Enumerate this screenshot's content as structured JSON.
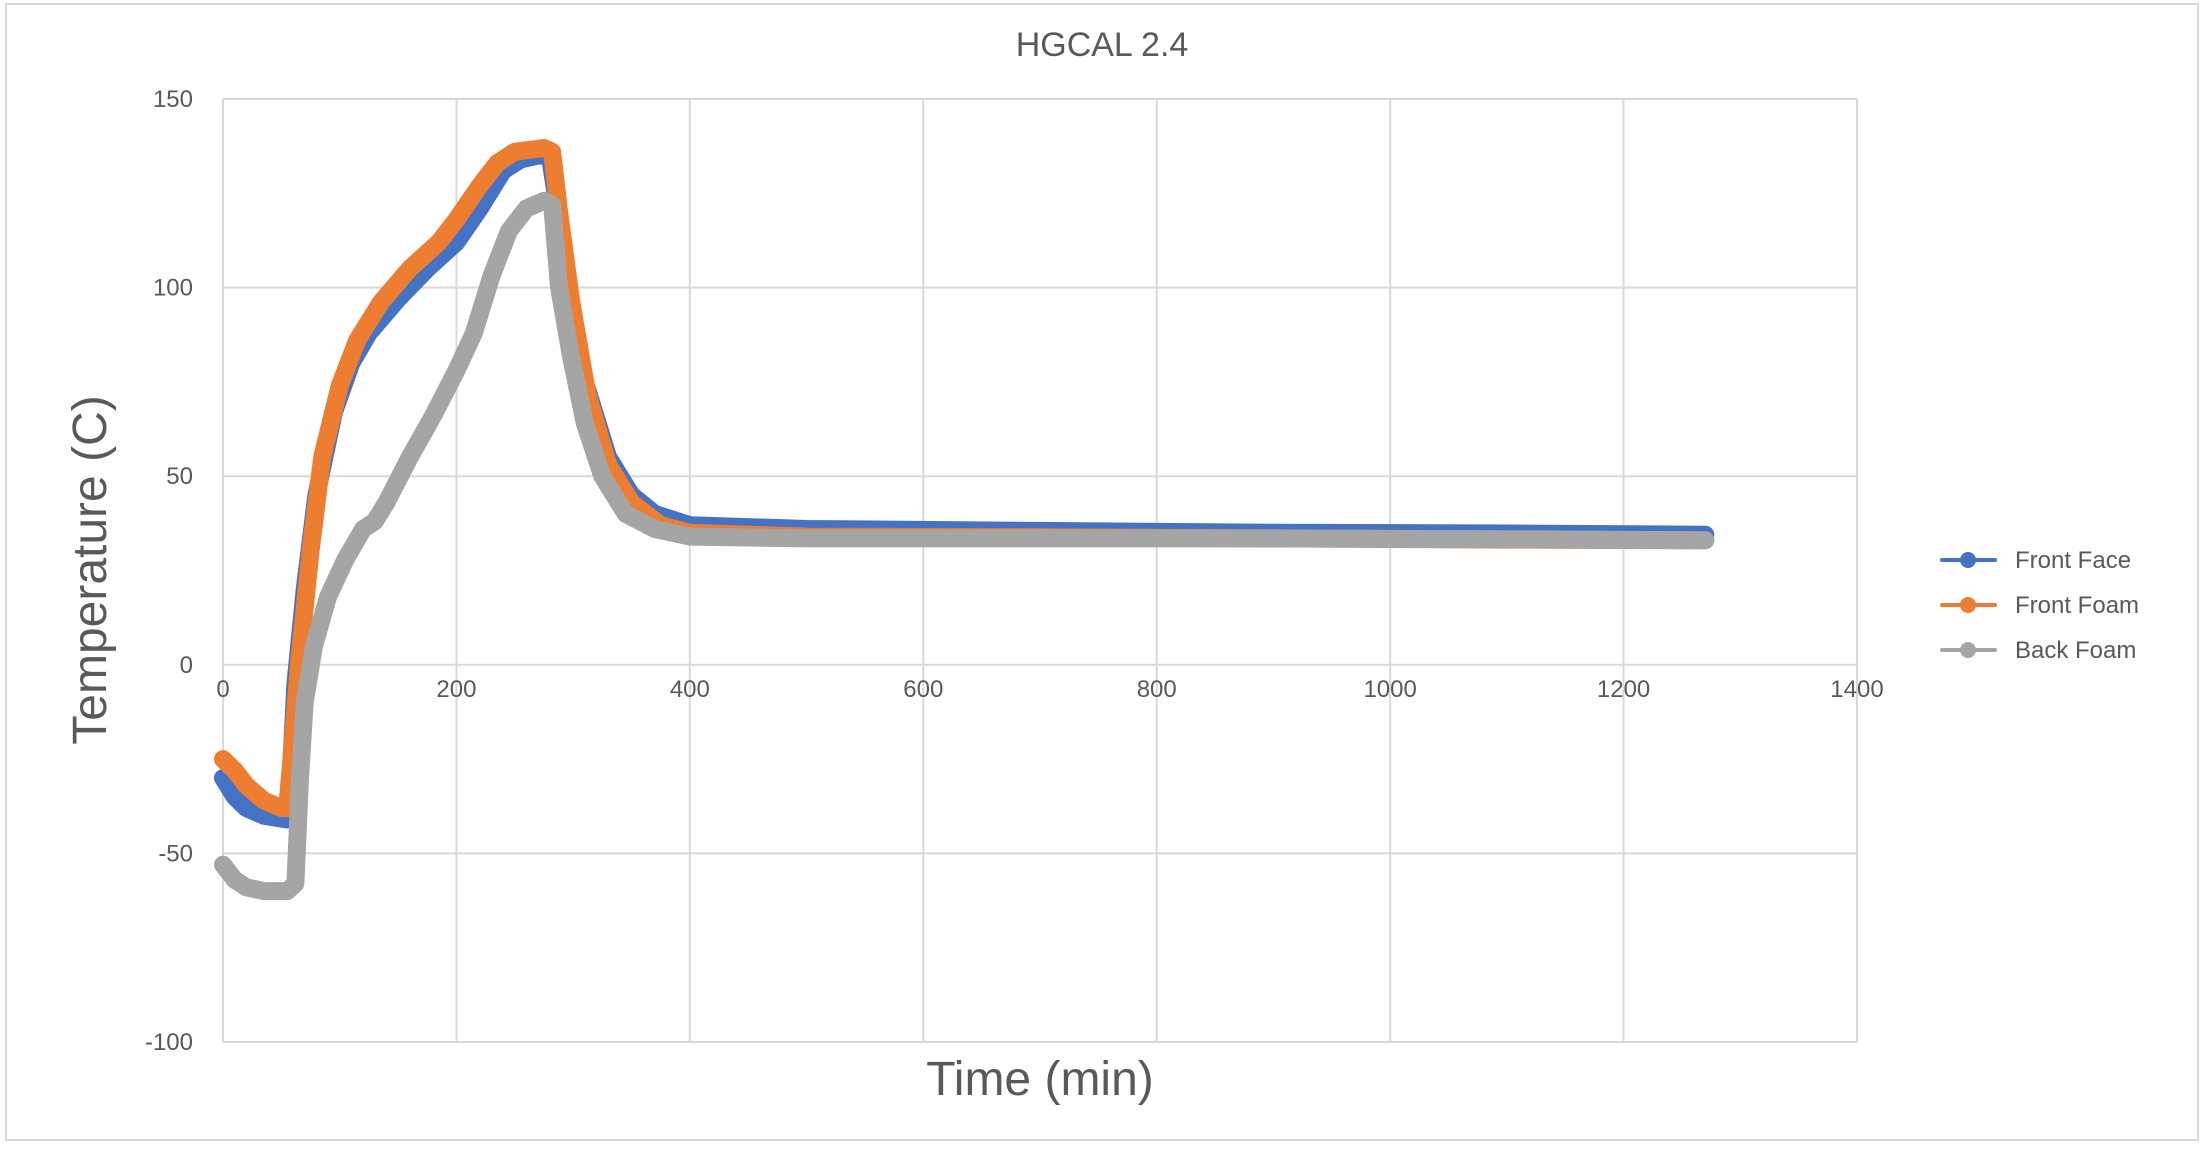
{
  "chart_data": {
    "type": "line",
    "title": "HGCAL 2.4",
    "xlabel": "Time (min)",
    "ylabel": "Temperature (C)",
    "xlim": [
      0,
      1400
    ],
    "ylim": [
      -100,
      150
    ],
    "xticks": [
      0,
      200,
      400,
      600,
      800,
      1000,
      1200,
      1400
    ],
    "yticks": [
      -100,
      -50,
      0,
      50,
      100,
      150
    ],
    "xtick_labels": [
      "0",
      "200",
      "400",
      "600",
      "800",
      "1000",
      "1200",
      "1400"
    ],
    "ytick_labels": [
      "-100",
      "-50",
      "0",
      "50",
      "100",
      "150"
    ],
    "grid": true,
    "legend_position": "right",
    "series": [
      {
        "name": "Front Face",
        "color": "#4472C4",
        "points": [
          [
            0,
            -30
          ],
          [
            10,
            -35
          ],
          [
            20,
            -38
          ],
          [
            35,
            -40
          ],
          [
            55,
            -41
          ],
          [
            58,
            -30
          ],
          [
            62,
            -5
          ],
          [
            70,
            20
          ],
          [
            80,
            45
          ],
          [
            95,
            67
          ],
          [
            110,
            80
          ],
          [
            125,
            88
          ],
          [
            150,
            97
          ],
          [
            175,
            105
          ],
          [
            200,
            112
          ],
          [
            220,
            121
          ],
          [
            240,
            131
          ],
          [
            255,
            134
          ],
          [
            270,
            135
          ],
          [
            280,
            135
          ],
          [
            285,
            125
          ],
          [
            295,
            100
          ],
          [
            310,
            75
          ],
          [
            330,
            55
          ],
          [
            350,
            45
          ],
          [
            370,
            40
          ],
          [
            400,
            37
          ],
          [
            500,
            36
          ],
          [
            700,
            35.5
          ],
          [
            900,
            35
          ],
          [
            1100,
            34.8
          ],
          [
            1270,
            34.5
          ]
        ]
      },
      {
        "name": "Front Foam",
        "color": "#ED7D31",
        "points": [
          [
            0,
            -25
          ],
          [
            10,
            -28
          ],
          [
            20,
            -32
          ],
          [
            35,
            -36
          ],
          [
            50,
            -38
          ],
          [
            55,
            -38
          ],
          [
            60,
            -20
          ],
          [
            65,
            0
          ],
          [
            75,
            30
          ],
          [
            85,
            55
          ],
          [
            100,
            74
          ],
          [
            115,
            86
          ],
          [
            135,
            96
          ],
          [
            160,
            105
          ],
          [
            185,
            112
          ],
          [
            200,
            118
          ],
          [
            220,
            127
          ],
          [
            235,
            133
          ],
          [
            250,
            136
          ],
          [
            275,
            137
          ],
          [
            282,
            136
          ],
          [
            288,
            120
          ],
          [
            298,
            97
          ],
          [
            312,
            72
          ],
          [
            330,
            53
          ],
          [
            350,
            43
          ],
          [
            375,
            37
          ],
          [
            400,
            35
          ],
          [
            500,
            34
          ],
          [
            700,
            33.8
          ],
          [
            900,
            33.5
          ],
          [
            1100,
            33.2
          ],
          [
            1270,
            33
          ]
        ]
      },
      {
        "name": "Back Foam",
        "color": "#A5A5A5",
        "points": [
          [
            0,
            -53
          ],
          [
            10,
            -57
          ],
          [
            20,
            -59
          ],
          [
            35,
            -60
          ],
          [
            55,
            -60
          ],
          [
            62,
            -58
          ],
          [
            66,
            -30
          ],
          [
            70,
            -10
          ],
          [
            78,
            5
          ],
          [
            90,
            18
          ],
          [
            105,
            28
          ],
          [
            120,
            36
          ],
          [
            130,
            38
          ],
          [
            140,
            43
          ],
          [
            160,
            55
          ],
          [
            180,
            66
          ],
          [
            200,
            78
          ],
          [
            215,
            88
          ],
          [
            230,
            103
          ],
          [
            245,
            115
          ],
          [
            260,
            121
          ],
          [
            275,
            123
          ],
          [
            282,
            122
          ],
          [
            288,
            100
          ],
          [
            298,
            82
          ],
          [
            310,
            64
          ],
          [
            325,
            50
          ],
          [
            345,
            40
          ],
          [
            370,
            36
          ],
          [
            400,
            34
          ],
          [
            500,
            33.5
          ],
          [
            700,
            33.5
          ],
          [
            900,
            33.5
          ],
          [
            1100,
            33.3
          ],
          [
            1270,
            33
          ]
        ]
      }
    ]
  }
}
